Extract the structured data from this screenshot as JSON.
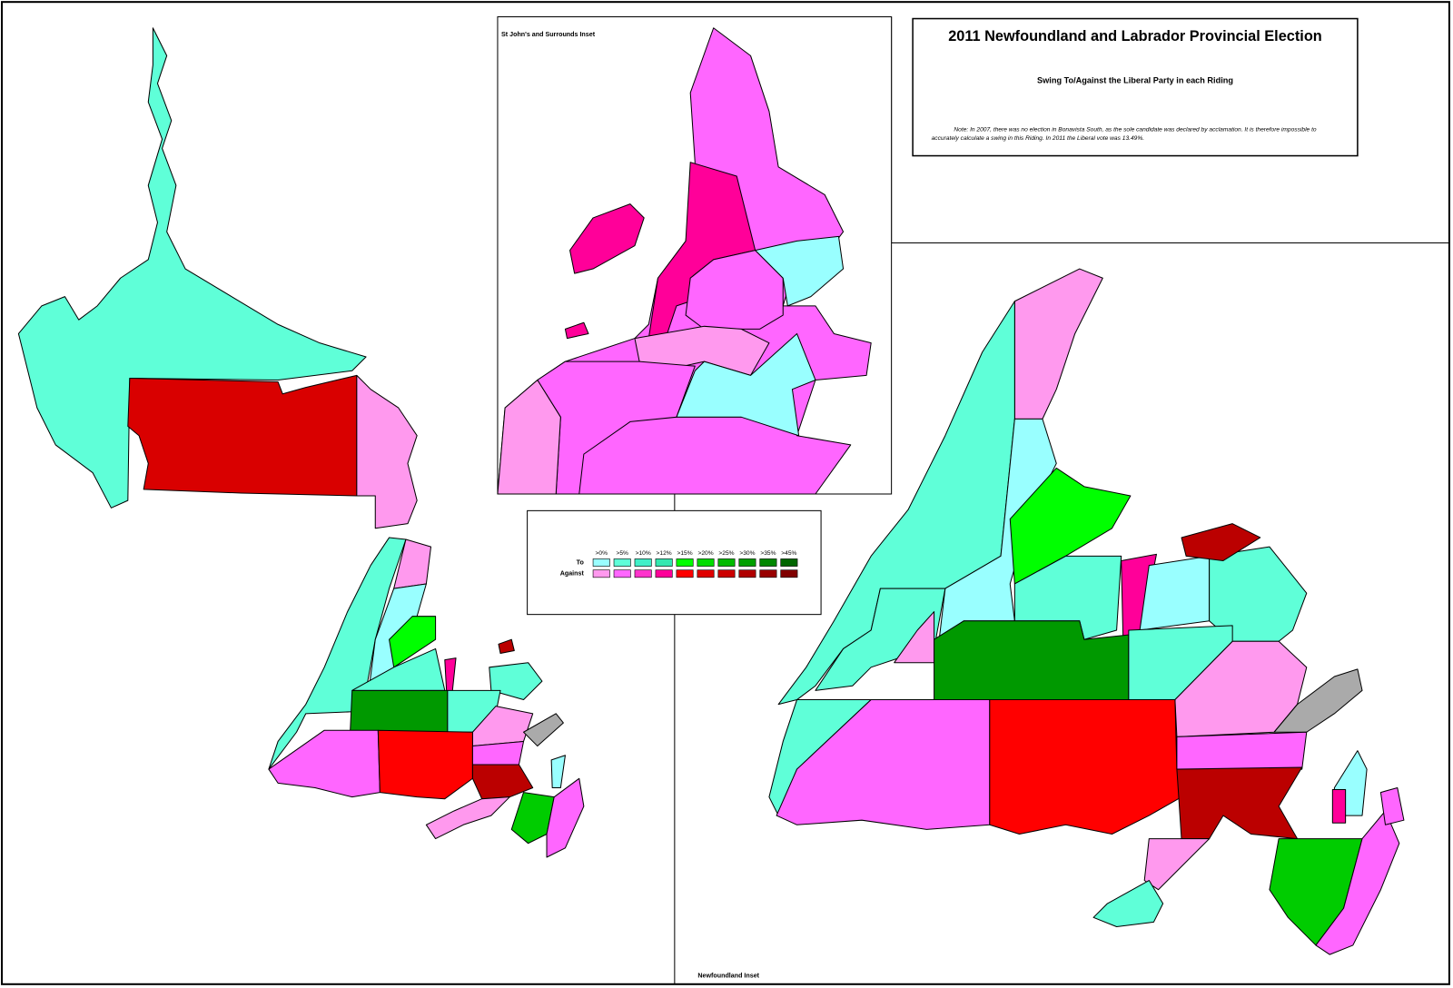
{
  "header": {
    "title": "2011 Newfoundland and Labrador Provincial Election",
    "subtitle": "Swing To/Against the Liberal Party in each Riding",
    "note_lines": [
      "Note: In 2007, there was no election in Bonavista South, as the sole candidate was declared by acclamation. It is therefore impossible to",
      "accurately calculate a swing in this Riding. In 2011 the Liberal vote was 13.49%."
    ]
  },
  "insets": {
    "st_johns": "St John's and Surrounds Inset",
    "newfoundland": "Newfoundland Inset"
  },
  "legend": {
    "thresholds": [
      ">0%",
      ">5%",
      ">10%",
      ">12%",
      ">15%",
      ">20%",
      ">25%",
      ">30%",
      ">35%",
      ">45%"
    ],
    "rows": [
      "To",
      "Against"
    ]
  }
}
